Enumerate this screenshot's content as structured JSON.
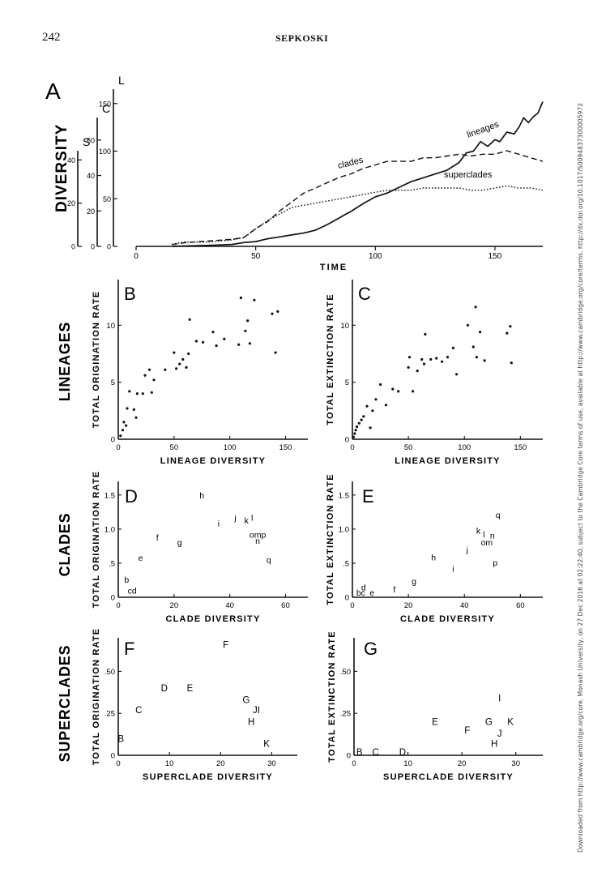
{
  "header": {
    "page_number": "242",
    "running_head": "SEPKOSKI"
  },
  "side_note": "Downloaded from http://www.cambridge.org/core. Monash University, on 27 Dec 2016 at 02:22:40, subject to the Cambridge Core terms of use, available at http://www.cambridge.org/core/terms. http://dx.doi.org/10.1017/S0094837300005972",
  "colors": {
    "ink": "#111111",
    "background": "#ffffff",
    "link": "#1a5fb4"
  },
  "chart_data": [
    {
      "id": "A",
      "type": "line",
      "panel_letter": "A",
      "ylabel": "DIVERSITY",
      "xlabel": "TIME",
      "xlim": [
        0,
        170
      ],
      "xticks": [
        "0",
        "50",
        "100",
        "150"
      ],
      "y_axes": [
        {
          "letter": "L",
          "ylim": [
            0,
            160
          ],
          "ticks": [
            "0",
            "50",
            "100",
            "150"
          ]
        },
        {
          "letter": "C",
          "ylim": [
            0,
            70
          ],
          "ticks": [
            "0",
            "20",
            "40",
            "60"
          ]
        },
        {
          "letter": "S",
          "ylim": [
            0,
            42
          ],
          "ticks": [
            "0",
            "20",
            "40"
          ]
        }
      ],
      "series": [
        {
          "name": "lineages",
          "style": "solid",
          "points": [
            [
              15,
              0
            ],
            [
              30,
              1
            ],
            [
              40,
              2
            ],
            [
              45,
              4
            ],
            [
              50,
              5
            ],
            [
              55,
              8
            ],
            [
              60,
              10
            ],
            [
              65,
              12
            ],
            [
              70,
              14
            ],
            [
              75,
              17
            ],
            [
              80,
              23
            ],
            [
              85,
              30
            ],
            [
              90,
              37
            ],
            [
              95,
              45
            ],
            [
              100,
              52
            ],
            [
              105,
              56
            ],
            [
              110,
              62
            ],
            [
              115,
              68
            ],
            [
              120,
              72
            ],
            [
              125,
              76
            ],
            [
              130,
              80
            ],
            [
              135,
              88
            ],
            [
              138,
              98
            ],
            [
              141,
              100
            ],
            [
              144,
              110
            ],
            [
              147,
              105
            ],
            [
              150,
              112
            ],
            [
              152,
              110
            ],
            [
              155,
              120
            ],
            [
              158,
              118
            ],
            [
              160,
              125
            ],
            [
              162,
              135
            ],
            [
              164,
              130
            ],
            [
              166,
              136
            ],
            [
              168,
              140
            ],
            [
              170,
              152
            ]
          ]
        },
        {
          "name": "clades",
          "style": "dashed",
          "points": [
            [
              15,
              1
            ],
            [
              20,
              2
            ],
            [
              30,
              3
            ],
            [
              40,
              4
            ],
            [
              45,
              5
            ],
            [
              50,
              10
            ],
            [
              55,
              14
            ],
            [
              60,
              20
            ],
            [
              65,
              25
            ],
            [
              70,
              30
            ],
            [
              75,
              33
            ],
            [
              80,
              36
            ],
            [
              85,
              39
            ],
            [
              90,
              41
            ],
            [
              95,
              44
            ],
            [
              100,
              46
            ],
            [
              105,
              48
            ],
            [
              110,
              48
            ],
            [
              115,
              48
            ],
            [
              120,
              50
            ],
            [
              125,
              50
            ],
            [
              130,
              51
            ],
            [
              135,
              52
            ],
            [
              140,
              51
            ],
            [
              145,
              52
            ],
            [
              150,
              52
            ],
            [
              155,
              54
            ],
            [
              160,
              52
            ],
            [
              165,
              50
            ],
            [
              170,
              48
            ]
          ]
        },
        {
          "name": "superclades",
          "style": "dotted",
          "points": [
            [
              15,
              1
            ],
            [
              20,
              2
            ],
            [
              30,
              2
            ],
            [
              40,
              3
            ],
            [
              45,
              4
            ],
            [
              50,
              8
            ],
            [
              55,
              12
            ],
            [
              60,
              15
            ],
            [
              65,
              18
            ],
            [
              70,
              19
            ],
            [
              75,
              20
            ],
            [
              80,
              21
            ],
            [
              85,
              22
            ],
            [
              90,
              23
            ],
            [
              95,
              24
            ],
            [
              100,
              25
            ],
            [
              105,
              26
            ],
            [
              110,
              26
            ],
            [
              115,
              26
            ],
            [
              120,
              27
            ],
            [
              125,
              27
            ],
            [
              130,
              27
            ],
            [
              135,
              27
            ],
            [
              140,
              26
            ],
            [
              145,
              26
            ],
            [
              150,
              27
            ],
            [
              155,
              28
            ],
            [
              160,
              27
            ],
            [
              165,
              27
            ],
            [
              170,
              26
            ]
          ]
        }
      ]
    },
    {
      "id": "B",
      "type": "scatter",
      "panel_letter": "B",
      "row_label": "LINEAGES",
      "xlabel": "LINEAGE DIVERSITY",
      "ylabel": "TOTAL ORIGINATION RATE",
      "xlim": [
        0,
        170
      ],
      "ylim": [
        0,
        14
      ],
      "xticks": [
        "0",
        "50",
        "100",
        "150"
      ],
      "yticks": [
        "0",
        "5",
        "10"
      ],
      "points": [
        [
          2,
          0.3
        ],
        [
          4,
          0.8
        ],
        [
          5,
          1.5
        ],
        [
          7,
          1.2
        ],
        [
          8,
          2.7
        ],
        [
          10,
          4.2
        ],
        [
          14,
          2.6
        ],
        [
          16,
          1.9
        ],
        [
          17,
          4.0
        ],
        [
          22,
          4.0
        ],
        [
          24,
          5.6
        ],
        [
          28,
          6.1
        ],
        [
          30,
          4.1
        ],
        [
          32,
          5.2
        ],
        [
          42,
          6.1
        ],
        [
          50,
          7.6
        ],
        [
          52,
          6.2
        ],
        [
          55,
          6.6
        ],
        [
          58,
          7.0
        ],
        [
          61,
          6.3
        ],
        [
          63,
          7.5
        ],
        [
          64,
          10.5
        ],
        [
          70,
          8.6
        ],
        [
          76,
          8.5
        ],
        [
          85,
          9.4
        ],
        [
          88,
          8.2
        ],
        [
          95,
          8.8
        ],
        [
          108,
          8.3
        ],
        [
          110,
          12.4
        ],
        [
          114,
          9.5
        ],
        [
          116,
          10.4
        ],
        [
          118,
          8.4
        ],
        [
          122,
          12.2
        ],
        [
          138,
          11.0
        ],
        [
          141,
          7.6
        ],
        [
          143,
          11.2
        ]
      ]
    },
    {
      "id": "C",
      "type": "scatter",
      "panel_letter": "C",
      "xlabel": "LINEAGE DIVERSITY",
      "ylabel": "TOTAL EXTINCTION RATE",
      "xlim": [
        0,
        170
      ],
      "ylim": [
        0,
        14
      ],
      "xticks": [
        "0",
        "50",
        "100",
        "150"
      ],
      "yticks": [
        "0",
        "5",
        "10"
      ],
      "points": [
        [
          1,
          0.2
        ],
        [
          2,
          0.5
        ],
        [
          3,
          0.8
        ],
        [
          4,
          1.1
        ],
        [
          6,
          1.4
        ],
        [
          8,
          1.7
        ],
        [
          10,
          2.0
        ],
        [
          13,
          2.9
        ],
        [
          16,
          1.0
        ],
        [
          18,
          2.5
        ],
        [
          21,
          3.5
        ],
        [
          25,
          4.8
        ],
        [
          30,
          3.0
        ],
        [
          36,
          4.4
        ],
        [
          41,
          4.2
        ],
        [
          50,
          6.3
        ],
        [
          51,
          7.2
        ],
        [
          54,
          4.2
        ],
        [
          58,
          6.0
        ],
        [
          62,
          7.0
        ],
        [
          64,
          6.6
        ],
        [
          65,
          9.2
        ],
        [
          70,
          7.0
        ],
        [
          75,
          7.1
        ],
        [
          80,
          6.8
        ],
        [
          85,
          7.2
        ],
        [
          90,
          8.0
        ],
        [
          93,
          5.7
        ],
        [
          103,
          10.0
        ],
        [
          108,
          8.1
        ],
        [
          110,
          11.6
        ],
        [
          111,
          7.2
        ],
        [
          114,
          9.4
        ],
        [
          118,
          6.9
        ],
        [
          138,
          9.3
        ],
        [
          141,
          9.9
        ],
        [
          142,
          6.7
        ]
      ]
    },
    {
      "id": "D",
      "type": "scatter",
      "panel_letter": "D",
      "row_label": "CLADES",
      "xlabel": "CLADE DIVERSITY",
      "ylabel": "TOTAL ORIGINATION RATE",
      "xlim": [
        0,
        68
      ],
      "ylim": [
        0,
        1.7
      ],
      "xticks": [
        "0",
        "20",
        "40",
        "60"
      ],
      "yticks": [
        "0",
        ".5",
        "1.0",
        "1.5"
      ],
      "points": [
        {
          "x": 3,
          "y": 0.26,
          "label": "b"
        },
        {
          "x": 5,
          "y": 0.1,
          "label": "cd"
        },
        {
          "x": 8,
          "y": 0.58,
          "label": "e"
        },
        {
          "x": 14,
          "y": 0.88,
          "label": "f"
        },
        {
          "x": 22,
          "y": 0.81,
          "label": "g"
        },
        {
          "x": 30,
          "y": 1.5,
          "label": "h"
        },
        {
          "x": 36,
          "y": 1.09,
          "label": "i"
        },
        {
          "x": 42,
          "y": 1.17,
          "label": "j"
        },
        {
          "x": 46,
          "y": 1.13,
          "label": "k"
        },
        {
          "x": 48,
          "y": 1.17,
          "label": "l"
        },
        {
          "x": 50,
          "y": 0.92,
          "label": "omp"
        },
        {
          "x": 50,
          "y": 0.83,
          "label": "n"
        },
        {
          "x": 54,
          "y": 0.55,
          "label": "q"
        }
      ]
    },
    {
      "id": "E",
      "type": "scatter",
      "panel_letter": "E",
      "xlabel": "CLADE DIVERSITY",
      "ylabel": "TOTAL EXTINCTION RATE",
      "xlim": [
        0,
        68
      ],
      "ylim": [
        0,
        1.7
      ],
      "xticks": [
        "0",
        "20",
        "40",
        "60"
      ],
      "yticks": [
        "0",
        ".5",
        "1.0",
        "1.5"
      ],
      "points": [
        {
          "x": 3,
          "y": 0.07,
          "label": "bc"
        },
        {
          "x": 4,
          "y": 0.15,
          "label": "d"
        },
        {
          "x": 7,
          "y": 0.07,
          "label": "e"
        },
        {
          "x": 15,
          "y": 0.12,
          "label": "f"
        },
        {
          "x": 22,
          "y": 0.24,
          "label": "g"
        },
        {
          "x": 29,
          "y": 0.59,
          "label": "h"
        },
        {
          "x": 36,
          "y": 0.42,
          "label": "i"
        },
        {
          "x": 41,
          "y": 0.7,
          "label": "j"
        },
        {
          "x": 45,
          "y": 0.98,
          "label": "k"
        },
        {
          "x": 47,
          "y": 0.93,
          "label": "l"
        },
        {
          "x": 50,
          "y": 0.91,
          "label": "n"
        },
        {
          "x": 48,
          "y": 0.81,
          "label": "om"
        },
        {
          "x": 52,
          "y": 1.21,
          "label": "q"
        },
        {
          "x": 51,
          "y": 0.51,
          "label": "p"
        }
      ]
    },
    {
      "id": "F",
      "type": "scatter",
      "panel_letter": "F",
      "row_label": "SUPERCLADES",
      "xlabel": "SUPERCLADE DIVERSITY",
      "ylabel": "TOTAL ORIGINATION RATE",
      "xlim": [
        0,
        35
      ],
      "ylim": [
        0,
        0.7
      ],
      "xticks": [
        "0",
        "10",
        "20",
        "30"
      ],
      "yticks": [
        "0",
        ".25",
        ".50"
      ],
      "points": [
        {
          "x": 0.5,
          "y": 0.1,
          "label": "B"
        },
        {
          "x": 4,
          "y": 0.27,
          "label": "C"
        },
        {
          "x": 9,
          "y": 0.4,
          "label": "D"
        },
        {
          "x": 14,
          "y": 0.4,
          "label": "E"
        },
        {
          "x": 21,
          "y": 0.66,
          "label": "F"
        },
        {
          "x": 25,
          "y": 0.33,
          "label": "G"
        },
        {
          "x": 27,
          "y": 0.27,
          "label": "JI"
        },
        {
          "x": 26,
          "y": 0.2,
          "label": "H"
        },
        {
          "x": 29,
          "y": 0.07,
          "label": "K"
        }
      ]
    },
    {
      "id": "G",
      "type": "scatter",
      "panel_letter": "G",
      "xlabel": "SUPERCLADE DIVERSITY",
      "ylabel": "TOTAL EXTINCTION RATE",
      "xlim": [
        0,
        35
      ],
      "ylim": [
        0,
        0.7
      ],
      "xticks": [
        "0",
        "10",
        "20",
        "30"
      ],
      "yticks": [
        "0",
        ".25",
        ".50"
      ],
      "points": [
        {
          "x": 1,
          "y": 0.02,
          "label": "B"
        },
        {
          "x": 4,
          "y": 0.02,
          "label": "C"
        },
        {
          "x": 9,
          "y": 0.02,
          "label": "D"
        },
        {
          "x": 15,
          "y": 0.2,
          "label": "E"
        },
        {
          "x": 21,
          "y": 0.15,
          "label": "F"
        },
        {
          "x": 25,
          "y": 0.2,
          "label": "G"
        },
        {
          "x": 27,
          "y": 0.34,
          "label": "I"
        },
        {
          "x": 27,
          "y": 0.13,
          "label": "J"
        },
        {
          "x": 29,
          "y": 0.2,
          "label": "K"
        },
        {
          "x": 26,
          "y": 0.07,
          "label": "H"
        }
      ]
    }
  ]
}
